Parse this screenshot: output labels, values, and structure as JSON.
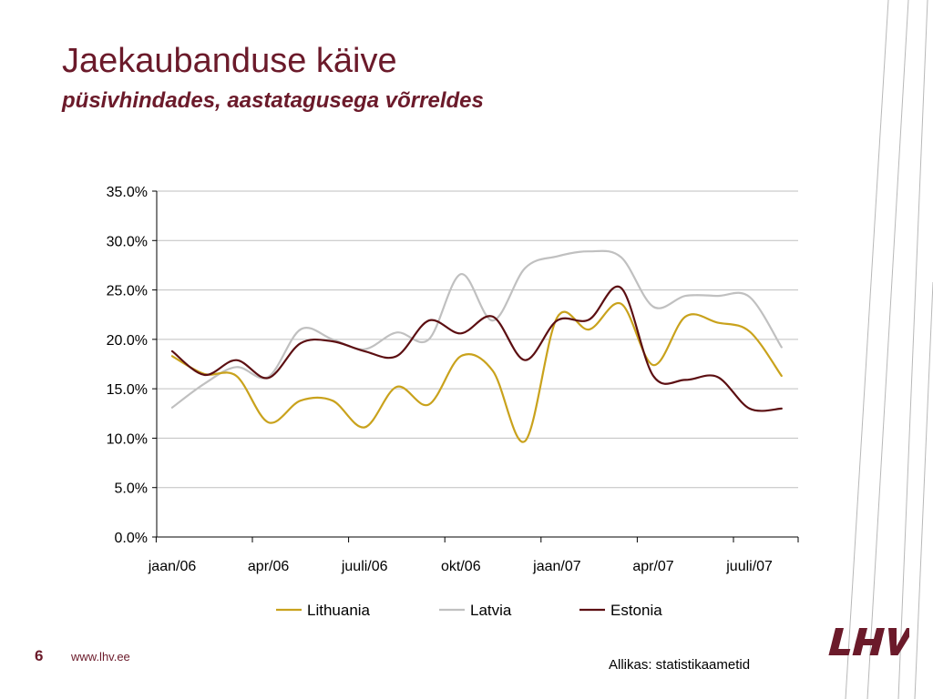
{
  "header": {
    "title": "Jaekaubanduse käive",
    "subtitle": "püsivhindades, aastatagusega võrreldes"
  },
  "footer": {
    "page_number": "6",
    "url": "www.lhv.ee",
    "source": "Allikas: statistikaametid",
    "logo_text": "LHV"
  },
  "colors": {
    "title": "#6b1a2a",
    "lithuania": "#c9a21c",
    "latvia": "#c0c0c0",
    "estonia": "#5c0f12",
    "gridline": "#bfbfbf"
  },
  "chart_data": {
    "type": "line",
    "x": [
      "2006-01",
      "2006-02",
      "2006-03",
      "2006-04",
      "2006-05",
      "2006-06",
      "2006-07",
      "2006-08",
      "2006-09",
      "2006-10",
      "2006-11",
      "2006-12",
      "2007-01",
      "2007-02",
      "2007-03",
      "2007-04",
      "2007-05",
      "2007-06",
      "2007-07",
      "2007-08"
    ],
    "x_tick_labels": [
      "jaan/06",
      "apr/06",
      "juuli/06",
      "okt/06",
      "jaan/07",
      "apr/07",
      "juuli/07"
    ],
    "x_tick_positions": [
      "2006-01",
      "2006-04",
      "2006-07",
      "2006-10",
      "2007-01",
      "2007-04",
      "2007-07"
    ],
    "y_tick_labels": [
      "0.0%",
      "5.0%",
      "10.0%",
      "15.0%",
      "20.0%",
      "25.0%",
      "30.0%",
      "35.0%"
    ],
    "ylim": [
      0,
      35
    ],
    "yunit": "%",
    "grid": true,
    "legend": "bottom",
    "series": [
      {
        "name": "Lithuania",
        "values": [
          18.3,
          16.5,
          16.3,
          11.6,
          13.8,
          13.8,
          11.1,
          15.2,
          13.4,
          18.3,
          16.8,
          9.7,
          22.2,
          21.0,
          23.6,
          17.4,
          22.3,
          21.7,
          20.8,
          16.3
        ]
      },
      {
        "name": "Latvia",
        "values": [
          13.1,
          15.5,
          17.2,
          16.2,
          21.0,
          20.0,
          19.0,
          20.7,
          20.0,
          26.6,
          21.9,
          27.2,
          28.4,
          28.9,
          28.3,
          23.3,
          24.4,
          24.4,
          24.3,
          19.2
        ]
      },
      {
        "name": "Estonia",
        "values": [
          18.8,
          16.4,
          17.9,
          16.1,
          19.6,
          19.8,
          18.8,
          18.3,
          21.9,
          20.6,
          22.3,
          17.9,
          21.9,
          22.0,
          25.2,
          16.3,
          15.9,
          16.2,
          13.0,
          13.0
        ]
      }
    ]
  }
}
